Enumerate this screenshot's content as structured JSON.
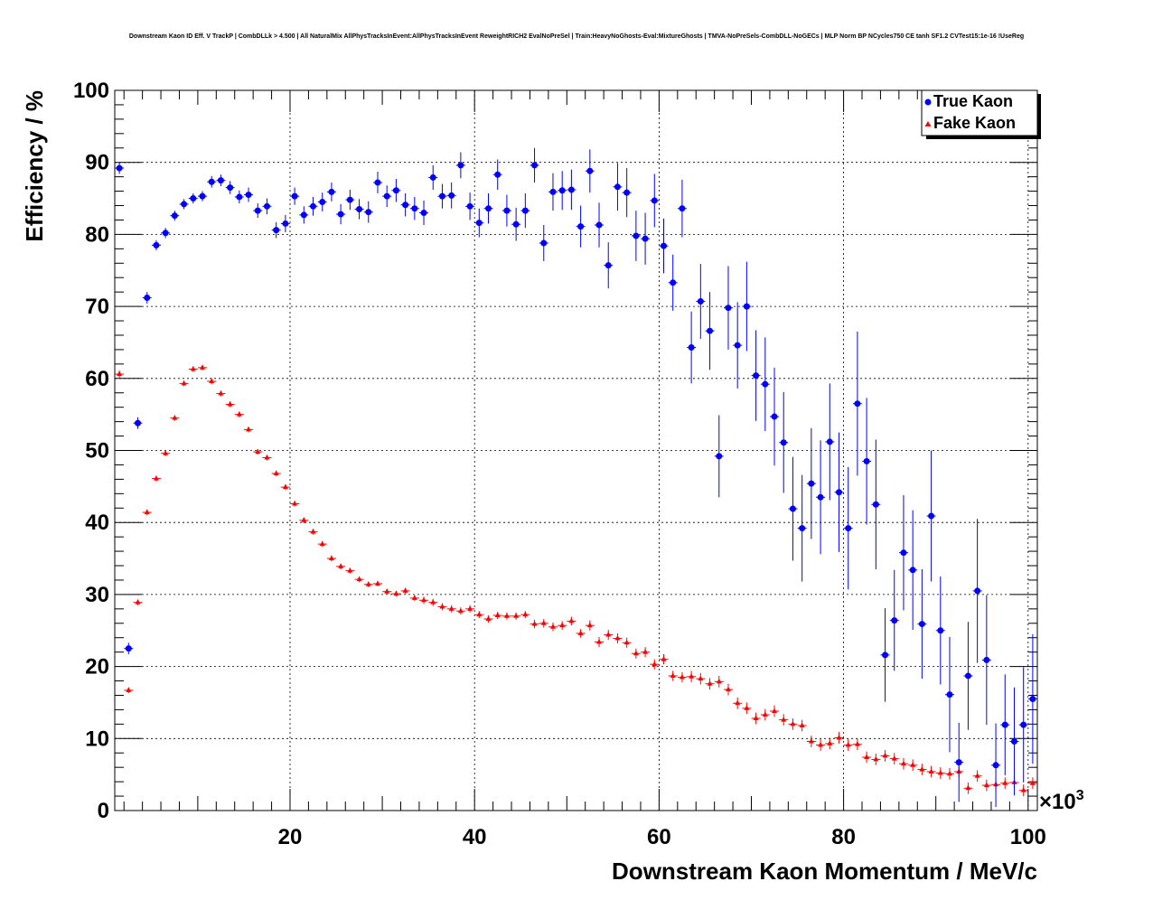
{
  "chart_data": {
    "type": "scatter",
    "title": "Downstream Kaon ID Eff. V TrackP | CombDLLk > 4.500 | All NaturalMix AllPhysTracksInEvent:AllPhysTracksInEvent ReweightRICH2 EvalNoPreSel | Train:HeavyNoGhosts-Eval:MixtureGhosts | TMVA-NoPreSels-CombDLL-NoGECs | MLP Norm BP NCycles750 CE tanh SF1.2 CVTest15:1e-16 !UseReg",
    "xlabel": "Downstream Kaon Momentum / MeV/c",
    "ylabel": "Efficiency / %",
    "x_scale_label": "×10",
    "x_scale_exponent": "3",
    "xlim": [
      1,
      101
    ],
    "ylim": [
      0,
      100
    ],
    "x_ticks": [
      20,
      40,
      60,
      80,
      100
    ],
    "y_ticks": [
      0,
      10,
      20,
      30,
      40,
      50,
      60,
      70,
      80,
      90,
      100
    ],
    "grid": true,
    "legend_position": "top-right",
    "colors": {
      "true_kaon": "#0000ff",
      "fake_kaon": "#ff0000"
    },
    "series": [
      {
        "name": "True Kaon",
        "marker": "circle",
        "color": "#0000ff",
        "x": [
          1.5,
          2.5,
          3.5,
          4.5,
          5.5,
          6.5,
          7.5,
          8.5,
          9.5,
          10.5,
          11.5,
          12.5,
          13.5,
          14.5,
          15.5,
          16.5,
          17.5,
          18.5,
          19.5,
          20.5,
          21.5,
          22.5,
          23.5,
          24.5,
          25.5,
          26.5,
          27.5,
          28.5,
          29.5,
          30.5,
          31.5,
          32.5,
          33.5,
          34.5,
          35.5,
          36.5,
          37.5,
          38.5,
          39.5,
          40.5,
          41.5,
          42.5,
          43.5,
          44.5,
          45.5,
          46.5,
          47.5,
          48.5,
          49.5,
          50.5,
          51.5,
          52.5,
          53.5,
          54.5,
          55.5,
          56.5,
          57.5,
          58.5,
          59.5,
          60.5,
          61.5,
          62.5,
          63.5,
          64.5,
          65.5,
          66.5,
          67.5,
          68.5,
          69.5,
          70.5,
          71.5,
          72.5,
          73.5,
          74.5,
          75.5,
          76.5,
          77.5,
          78.5,
          79.5,
          80.5,
          81.5,
          82.5,
          83.5,
          84.5,
          85.5,
          86.5,
          87.5,
          88.5,
          89.5,
          90.5,
          91.5,
          92.5,
          93.5,
          94.5,
          95.5,
          96.5,
          97.5,
          98.5,
          99.5,
          100.5
        ],
        "y": [
          89.2,
          22.5,
          53.8,
          71.2,
          78.5,
          80.2,
          82.6,
          84.2,
          85.0,
          85.3,
          87.3,
          87.5,
          86.5,
          85.2,
          85.5,
          83.3,
          83.9,
          80.6,
          81.5,
          85.3,
          82.7,
          83.9,
          84.5,
          85.9,
          82.8,
          84.8,
          83.5,
          83.1,
          87.2,
          85.3,
          86.1,
          84.1,
          83.6,
          83.0,
          87.9,
          85.3,
          85.4,
          89.6,
          83.9,
          81.6,
          83.6,
          88.3,
          83.3,
          81.4,
          83.3,
          89.6,
          78.8,
          85.9,
          86.1,
          86.2,
          81.1,
          88.8,
          81.3,
          75.7,
          86.6,
          85.8,
          79.8,
          79.4,
          84.7,
          78.4,
          73.3,
          83.6,
          64.3,
          70.7,
          66.6,
          49.2,
          69.8,
          64.6,
          70.0,
          60.4,
          59.2,
          54.7,
          51.1,
          41.9,
          39.2,
          45.4,
          43.5,
          51.2,
          44.2,
          39.2,
          56.5,
          48.5,
          42.5,
          21.6,
          26.4,
          35.8,
          33.4,
          25.9,
          40.9,
          25.0,
          16.1,
          6.7,
          18.7,
          30.5,
          20.9,
          6.3,
          11.9,
          9.6,
          11.9,
          15.5
        ],
        "yerr": [
          0.8,
          0.8,
          0.8,
          0.8,
          0.7,
          0.7,
          0.7,
          0.7,
          0.7,
          0.7,
          0.8,
          0.8,
          0.9,
          0.9,
          1.0,
          1.0,
          1.1,
          1.1,
          1.2,
          1.2,
          1.2,
          1.3,
          1.3,
          1.3,
          1.4,
          1.4,
          1.4,
          1.5,
          1.5,
          1.5,
          1.6,
          1.6,
          1.6,
          1.7,
          1.7,
          1.7,
          1.8,
          1.8,
          1.9,
          2.0,
          2.1,
          2.1,
          2.2,
          2.3,
          2.4,
          2.4,
          2.5,
          2.6,
          2.7,
          2.8,
          2.9,
          3.0,
          3.1,
          3.2,
          3.3,
          3.4,
          3.5,
          3.6,
          3.7,
          3.8,
          3.9,
          4.0,
          5.0,
          5.2,
          5.4,
          5.7,
          5.8,
          6.0,
          6.2,
          6.3,
          6.5,
          6.8,
          7.0,
          7.2,
          7.4,
          7.7,
          7.9,
          8.1,
          8.3,
          8.5,
          10.0,
          8.8,
          9.0,
          6.5,
          7.0,
          8.0,
          8.3,
          7.6,
          9.1,
          7.5,
          8.0,
          5.5,
          7.5,
          10.0,
          9.0,
          5.8,
          7.0,
          7.5,
          8.0,
          9.0
        ]
      },
      {
        "name": "Fake Kaon",
        "marker": "triangle",
        "color": "#ff0000",
        "x": [
          1.5,
          2.5,
          3.5,
          4.5,
          5.5,
          6.5,
          7.5,
          8.5,
          9.5,
          10.5,
          11.5,
          12.5,
          13.5,
          14.5,
          15.5,
          16.5,
          17.5,
          18.5,
          19.5,
          20.5,
          21.5,
          22.5,
          23.5,
          24.5,
          25.5,
          26.5,
          27.5,
          28.5,
          29.5,
          30.5,
          31.5,
          32.5,
          33.5,
          34.5,
          35.5,
          36.5,
          37.5,
          38.5,
          39.5,
          40.5,
          41.5,
          42.5,
          43.5,
          44.5,
          45.5,
          46.5,
          47.5,
          48.5,
          49.5,
          50.5,
          51.5,
          52.5,
          53.5,
          54.5,
          55.5,
          56.5,
          57.5,
          58.5,
          59.5,
          60.5,
          61.5,
          62.5,
          63.5,
          64.5,
          65.5,
          66.5,
          67.5,
          68.5,
          69.5,
          70.5,
          71.5,
          72.5,
          73.5,
          74.5,
          75.5,
          76.5,
          77.5,
          78.5,
          79.5,
          80.5,
          81.5,
          82.5,
          83.5,
          84.5,
          85.5,
          86.5,
          87.5,
          88.5,
          89.5,
          90.5,
          91.5,
          92.5,
          93.5,
          94.5,
          95.5,
          96.5,
          97.5,
          98.5,
          99.5,
          100.5
        ],
        "y": [
          60.6,
          16.7,
          28.9,
          41.4,
          46.1,
          49.6,
          54.5,
          59.3,
          61.3,
          61.5,
          59.6,
          57.9,
          56.4,
          55.0,
          52.9,
          49.8,
          49.0,
          46.8,
          44.9,
          42.6,
          40.3,
          38.7,
          37.0,
          35.0,
          33.9,
          33.3,
          32.1,
          31.4,
          31.5,
          30.4,
          30.1,
          30.5,
          29.5,
          29.2,
          28.9,
          28.3,
          28.0,
          27.7,
          28.0,
          27.2,
          26.6,
          27.1,
          27.0,
          27.0,
          27.2,
          25.9,
          26.0,
          25.5,
          25.7,
          26.3,
          24.6,
          25.7,
          23.4,
          24.4,
          23.9,
          23.3,
          21.8,
          22.0,
          20.3,
          21.0,
          18.7,
          18.5,
          18.6,
          18.3,
          17.6,
          17.9,
          16.8,
          14.9,
          14.2,
          12.8,
          13.3,
          13.8,
          12.6,
          12.0,
          11.8,
          9.6,
          9.1,
          9.3,
          10.1,
          9.1,
          9.2,
          7.4,
          7.1,
          7.6,
          7.2,
          6.5,
          6.3,
          5.7,
          5.4,
          5.2,
          5.1,
          5.4,
          3.1,
          4.8,
          3.5,
          3.6,
          3.8,
          3.9,
          2.8,
          3.8
        ],
        "yerr": [
          0.5,
          0.4,
          0.4,
          0.4,
          0.4,
          0.4,
          0.4,
          0.4,
          0.4,
          0.4,
          0.4,
          0.4,
          0.4,
          0.4,
          0.4,
          0.4,
          0.4,
          0.4,
          0.4,
          0.4,
          0.4,
          0.4,
          0.4,
          0.4,
          0.4,
          0.4,
          0.4,
          0.4,
          0.4,
          0.4,
          0.4,
          0.4,
          0.4,
          0.5,
          0.5,
          0.5,
          0.5,
          0.5,
          0.5,
          0.5,
          0.5,
          0.5,
          0.5,
          0.5,
          0.5,
          0.6,
          0.6,
          0.6,
          0.6,
          0.6,
          0.6,
          0.7,
          0.7,
          0.7,
          0.7,
          0.7,
          0.7,
          0.7,
          0.7,
          0.7,
          0.7,
          0.7,
          0.8,
          0.8,
          0.8,
          0.8,
          0.8,
          0.8,
          0.8,
          0.8,
          0.8,
          0.8,
          0.8,
          0.8,
          0.8,
          0.8,
          0.8,
          0.8,
          0.8,
          0.8,
          0.8,
          0.8,
          0.8,
          0.8,
          0.8,
          0.8,
          0.8,
          0.8,
          0.8,
          0.8,
          0.8,
          0.8,
          0.8,
          0.8,
          0.8,
          0.8,
          0.8,
          0.8,
          0.8,
          0.8
        ]
      }
    ]
  }
}
